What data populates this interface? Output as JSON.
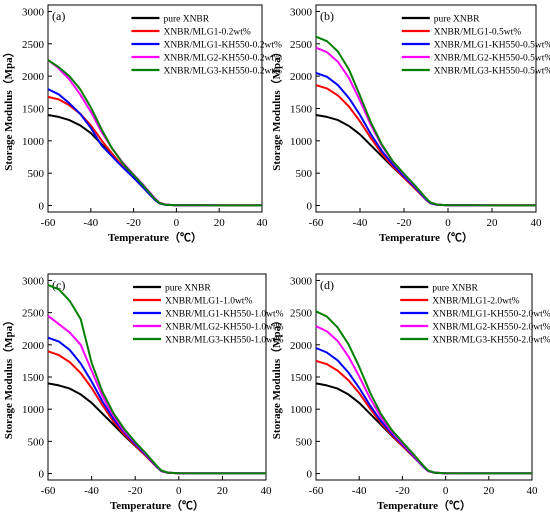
{
  "chart_data": [
    {
      "type": "line",
      "panel_label": "(a)",
      "xlabel": "Temperature（℃）",
      "ylabel": "Storage Modulus（Mpa）",
      "xlim": [
        -60,
        40
      ],
      "ylim": [
        -100,
        3100
      ],
      "xticks": [
        -60,
        -40,
        -20,
        0,
        20,
        40
      ],
      "yticks": [
        0,
        500,
        1000,
        1500,
        2000,
        2500,
        3000
      ],
      "legend_position": "top-right",
      "grid": false,
      "x": [
        -60,
        -55,
        -50,
        -45,
        -40,
        -35,
        -30,
        -25,
        -20,
        -15,
        -10,
        -8,
        -5,
        0,
        10,
        20,
        40
      ],
      "series": [
        {
          "name": "pure XNBR",
          "color": "#000000",
          "values": [
            1400,
            1370,
            1320,
            1240,
            1120,
            950,
            780,
            600,
            440,
            280,
            100,
            40,
            12,
            5,
            3,
            2,
            2
          ]
        },
        {
          "name": "XNBR/MLG1-0.2wt%",
          "color": "#ff0000",
          "values": [
            1680,
            1640,
            1550,
            1420,
            1240,
            1010,
            800,
            600,
            430,
            260,
            90,
            35,
            12,
            5,
            3,
            2,
            2
          ]
        },
        {
          "name": "XNBR/MLG1-KH550-0.2wt%",
          "color": "#0000ff",
          "values": [
            1800,
            1720,
            1580,
            1420,
            1200,
            930,
            760,
            590,
            430,
            260,
            85,
            35,
            12,
            5,
            3,
            2,
            2
          ]
        },
        {
          "name": "XNBR/MLG2-KH550-0.2wt%",
          "color": "#ff00ff",
          "values": [
            2250,
            2120,
            1950,
            1720,
            1450,
            1140,
            880,
            660,
            480,
            300,
            110,
            45,
            14,
            5,
            3,
            2,
            2
          ]
        },
        {
          "name": "XNBR/MLG3-KH550-0.2wt%",
          "color": "#008000",
          "values": [
            2250,
            2140,
            2000,
            1800,
            1520,
            1180,
            880,
            650,
            470,
            290,
            100,
            40,
            12,
            5,
            3,
            2,
            2
          ]
        }
      ]
    },
    {
      "type": "line",
      "panel_label": "(b)",
      "xlabel": "Temperature（℃）",
      "ylabel": "Storage Modulus（Mpa）",
      "xlim": [
        -60,
        40
      ],
      "ylim": [
        -100,
        3100
      ],
      "xticks": [
        -60,
        -40,
        -20,
        0,
        20,
        40
      ],
      "yticks": [
        0,
        500,
        1000,
        1500,
        2000,
        2500,
        3000
      ],
      "legend_position": "top-right",
      "grid": false,
      "x": [
        -60,
        -55,
        -50,
        -45,
        -40,
        -35,
        -30,
        -25,
        -20,
        -15,
        -10,
        -8,
        -5,
        0,
        10,
        20,
        40
      ],
      "series": [
        {
          "name": "pure XNBR",
          "color": "#000000",
          "values": [
            1400,
            1370,
            1320,
            1230,
            1100,
            930,
            760,
            590,
            430,
            270,
            100,
            40,
            12,
            5,
            3,
            2,
            2
          ]
        },
        {
          "name": "XNBR/MLG1-0.5wt%",
          "color": "#ff0000",
          "values": [
            1860,
            1810,
            1700,
            1530,
            1300,
            1040,
            800,
            600,
            430,
            260,
            90,
            35,
            12,
            5,
            3,
            2,
            2
          ]
        },
        {
          "name": "XNBR/MLG1-KH550-0.5wt%",
          "color": "#0000ff",
          "values": [
            2050,
            1990,
            1860,
            1660,
            1400,
            1100,
            840,
            630,
            450,
            280,
            95,
            38,
            12,
            5,
            3,
            2,
            2
          ]
        },
        {
          "name": "XNBR/MLG2-KH550-0.5wt%",
          "color": "#ff00ff",
          "values": [
            2440,
            2370,
            2220,
            1970,
            1620,
            1240,
            920,
            670,
            480,
            300,
            110,
            45,
            14,
            5,
            3,
            2,
            2
          ]
        },
        {
          "name": "XNBR/MLG3-KH550-0.5wt%",
          "color": "#008000",
          "values": [
            2610,
            2540,
            2380,
            2100,
            1700,
            1280,
            940,
            680,
            490,
            310,
            115,
            48,
            15,
            5,
            3,
            2,
            2
          ]
        }
      ]
    },
    {
      "type": "line",
      "panel_label": "(c)",
      "xlabel": "Temperature（℃）",
      "ylabel": "Storage Modulus（Mpa）",
      "xlim": [
        -60,
        40
      ],
      "ylim": [
        -100,
        3100
      ],
      "xticks": [
        -60,
        -40,
        -20,
        0,
        20,
        40
      ],
      "yticks": [
        0,
        500,
        1000,
        1500,
        2000,
        2500,
        3000
      ],
      "legend_position": "top-right",
      "grid": false,
      "x": [
        -60,
        -55,
        -50,
        -45,
        -40,
        -35,
        -30,
        -25,
        -20,
        -15,
        -10,
        -8,
        -5,
        0,
        10,
        20,
        40
      ],
      "series": [
        {
          "name": "pure XNBR",
          "color": "#000000",
          "values": [
            1400,
            1370,
            1320,
            1230,
            1100,
            930,
            760,
            590,
            430,
            270,
            100,
            40,
            12,
            5,
            3,
            2,
            2
          ]
        },
        {
          "name": "XNBR/MLG1-1.0wt%",
          "color": "#ff0000",
          "values": [
            1900,
            1840,
            1730,
            1560,
            1330,
            1060,
            810,
            610,
            440,
            270,
            95,
            38,
            12,
            5,
            3,
            2,
            2
          ]
        },
        {
          "name": "XNBR/MLG1-KH550-1.0wt%",
          "color": "#0000ff",
          "values": [
            2110,
            2050,
            1920,
            1710,
            1430,
            1120,
            850,
            640,
            460,
            285,
            100,
            40,
            13,
            5,
            3,
            2,
            2
          ]
        },
        {
          "name": "XNBR/MLG2-KH550-1.0wt%",
          "color": "#ff00ff",
          "values": [
            2450,
            2320,
            2190,
            2000,
            1600,
            1200,
            900,
            660,
            480,
            300,
            110,
            45,
            14,
            5,
            3,
            2,
            2
          ]
        },
        {
          "name": "XNBR/MLG3-KH550-1.0wt%",
          "color": "#008000",
          "values": [
            2930,
            2860,
            2680,
            2400,
            1720,
            1270,
            940,
            690,
            490,
            310,
            115,
            48,
            15,
            5,
            3,
            2,
            2
          ]
        }
      ]
    },
    {
      "type": "line",
      "panel_label": "(d)",
      "xlabel": "Temperature（℃）",
      "ylabel": "Storage Modulus（Mpa）",
      "xlim": [
        -60,
        40
      ],
      "ylim": [
        -100,
        3100
      ],
      "xticks": [
        -60,
        -40,
        -20,
        0,
        20,
        40
      ],
      "yticks": [
        0,
        500,
        1000,
        1500,
        2000,
        2500,
        3000
      ],
      "legend_position": "top-right",
      "grid": false,
      "x": [
        -60,
        -55,
        -50,
        -45,
        -40,
        -35,
        -30,
        -25,
        -20,
        -15,
        -10,
        -8,
        -5,
        0,
        10,
        20,
        40
      ],
      "series": [
        {
          "name": "pure XNBR",
          "color": "#000000",
          "values": [
            1400,
            1370,
            1320,
            1230,
            1100,
            930,
            760,
            590,
            430,
            270,
            100,
            40,
            12,
            5,
            3,
            2,
            2
          ]
        },
        {
          "name": "XNBR/MLG1-2.0wt%",
          "color": "#ff0000",
          "values": [
            1750,
            1700,
            1600,
            1450,
            1250,
            1010,
            790,
            600,
            430,
            265,
            92,
            36,
            12,
            5,
            3,
            2,
            2
          ]
        },
        {
          "name": "XNBR/MLG1-KH550-2.0wt%",
          "color": "#0000ff",
          "values": [
            1950,
            1880,
            1760,
            1570,
            1330,
            1060,
            820,
            620,
            450,
            275,
            96,
            38,
            12,
            5,
            3,
            2,
            2
          ]
        },
        {
          "name": "XNBR/MLG2-KH550-2.0wt%",
          "color": "#ff00ff",
          "values": [
            2290,
            2210,
            2060,
            1820,
            1510,
            1170,
            880,
            650,
            470,
            290,
            105,
            42,
            13,
            5,
            3,
            2,
            2
          ]
        },
        {
          "name": "XNBR/MLG3-KH550-2.0wt%",
          "color": "#008000",
          "values": [
            2520,
            2440,
            2270,
            2010,
            1660,
            1260,
            930,
            680,
            490,
            305,
            112,
            46,
            14,
            5,
            3,
            2,
            2
          ]
        }
      ]
    }
  ]
}
